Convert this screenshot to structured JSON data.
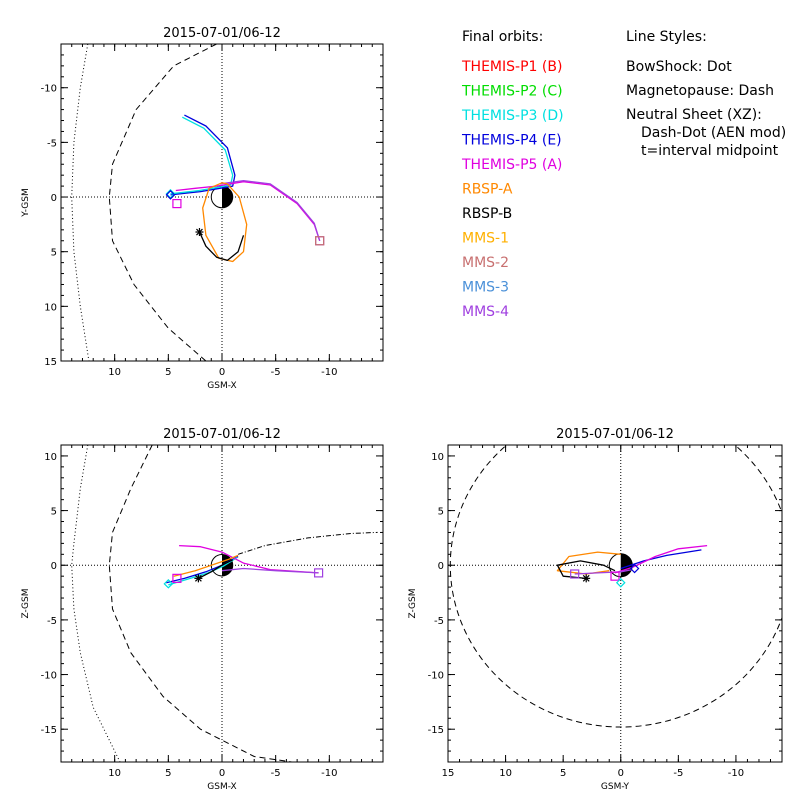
{
  "legend": {
    "orbits_title": "Final orbits:",
    "styles_title": "Line Styles:",
    "entries": [
      {
        "label": "THEMIS-P1 (B)",
        "color": "#ff0000"
      },
      {
        "label": "THEMIS-P2 (C)",
        "color": "#00dd00"
      },
      {
        "label": "THEMIS-P3 (D)",
        "color": "#00e0e0"
      },
      {
        "label": "THEMIS-P4 (E)",
        "color": "#0000dd"
      },
      {
        "label": "THEMIS-P5 (A)",
        "color": "#e000e0"
      },
      {
        "label": "RBSP-A",
        "color": "#ff8800"
      },
      {
        "label": "RBSP-B",
        "color": "#000000"
      },
      {
        "label": "MMS-1",
        "color": "#ffb000"
      },
      {
        "label": "MMS-2",
        "color": "#c87070"
      },
      {
        "label": "MMS-3",
        "color": "#4a90d8"
      },
      {
        "label": "MMS-4",
        "color": "#a040e0"
      }
    ],
    "styles": [
      "BowShock: Dot",
      "Magnetopause: Dash",
      "Neutral Sheet (XZ):",
      "Dash-Dot (AEN mod)",
      "t=interval midpoint"
    ]
  },
  "chart_data": [
    {
      "id": "xy",
      "type": "line",
      "title": "2015-07-01/06-12",
      "xlabel": "GSM-X",
      "ylabel": "Y-GSM",
      "xlim": [
        15,
        -15
      ],
      "ylim": [
        15,
        -14
      ],
      "xticks": [
        10,
        5,
        0,
        -5,
        -10
      ],
      "yticks": [
        -10,
        -5,
        0,
        5,
        10,
        15
      ],
      "bow_shock": [
        [
          12.5,
          -14
        ],
        [
          13.2,
          -10
        ],
        [
          13.8,
          -5
        ],
        [
          14.0,
          0
        ],
        [
          13.8,
          5
        ],
        [
          13.2,
          10
        ],
        [
          12.4,
          15
        ]
      ],
      "magnetopause": [
        [
          0.5,
          -14
        ],
        [
          4.5,
          -12
        ],
        [
          8.0,
          -8
        ],
        [
          10.2,
          -3
        ],
        [
          10.5,
          0
        ],
        [
          10.2,
          4
        ],
        [
          8.2,
          8
        ],
        [
          5.0,
          12
        ],
        [
          1.5,
          15
        ]
      ],
      "series": [
        {
          "name": "THEMIS-P4 (E)",
          "color": "#0000dd",
          "values": [
            [
              3.5,
              -7.5
            ],
            [
              1.5,
              -6.5
            ],
            [
              -0.5,
              -4.5
            ],
            [
              -1.2,
              -2.0
            ],
            [
              -1.0,
              -1.0
            ],
            [
              0.2,
              -0.8
            ],
            [
              2.0,
              -0.5
            ],
            [
              4.8,
              -0.2
            ]
          ]
        },
        {
          "name": "THEMIS-P3 (D)",
          "color": "#00e0e0",
          "values": [
            [
              3.7,
              -7.3
            ],
            [
              1.7,
              -6.3
            ],
            [
              -0.3,
              -4.3
            ],
            [
              -1.0,
              -2.0
            ],
            [
              -0.8,
              -1.1
            ],
            [
              0.3,
              -0.9
            ],
            [
              2.1,
              -0.6
            ],
            [
              4.8,
              -0.3
            ]
          ]
        },
        {
          "name": "THEMIS-P5 (A)",
          "color": "#e000e0",
          "values": [
            [
              4.3,
              -0.6
            ],
            [
              2.5,
              -0.8
            ],
            [
              0.5,
              -1.0
            ],
            [
              -2.0,
              -1.4
            ],
            [
              -4.5,
              -1.1
            ],
            [
              -7.0,
              0.6
            ],
            [
              -8.6,
              2.5
            ],
            [
              -9.1,
              4.0
            ]
          ]
        },
        {
          "name": "MMS-4",
          "color": "#a040e0",
          "values": [
            [
              0.2,
              -1.2
            ],
            [
              -2.0,
              -1.5
            ],
            [
              -4.5,
              -1.2
            ],
            [
              -7.0,
              0.5
            ],
            [
              -8.6,
              2.4
            ],
            [
              -9.1,
              4.0
            ]
          ]
        },
        {
          "name": "RBSP-A",
          "color": "#ff8800",
          "values": [
            [
              -0.5,
              -1.2
            ],
            [
              -1.6,
              0.0
            ],
            [
              -2.3,
              2.5
            ],
            [
              -2.0,
              5.0
            ],
            [
              -1.0,
              5.9
            ],
            [
              0.3,
              5.6
            ],
            [
              1.5,
              3.5
            ],
            [
              1.8,
              1.0
            ],
            [
              1.2,
              -0.8
            ],
            [
              0.0,
              -1.3
            ],
            [
              -0.5,
              -1.2
            ]
          ]
        },
        {
          "name": "RBSP-B",
          "color": "#000000",
          "values": [
            [
              2.1,
              3.2
            ],
            [
              1.5,
              4.5
            ],
            [
              0.5,
              5.5
            ],
            [
              -0.5,
              5.8
            ],
            [
              -1.5,
              5.0
            ],
            [
              -2.0,
              3.5
            ]
          ]
        }
      ],
      "markers": [
        {
          "name": "THEMIS-P3 (D)",
          "shape": "diamond",
          "color": "#00e0e0",
          "x": 4.8,
          "y": -0.3
        },
        {
          "name": "THEMIS-P4 (E)",
          "shape": "diamond",
          "color": "#0000dd",
          "x": 4.8,
          "y": -0.2
        },
        {
          "name": "THEMIS-P5 (A)",
          "shape": "square",
          "color": "#e000e0",
          "x": 4.2,
          "y": 0.6
        },
        {
          "name": "RBSP-B",
          "shape": "asterisk",
          "color": "#000000",
          "x": 2.1,
          "y": 3.2
        },
        {
          "name": "MMS-4",
          "shape": "square",
          "color": "#a040e0",
          "x": -9.1,
          "y": 4.0
        },
        {
          "name": "MMS-2",
          "shape": "square",
          "color": "#c87070",
          "x": -9.1,
          "y": 4.0
        }
      ]
    },
    {
      "id": "xz",
      "type": "line",
      "title": "2015-07-01/06-12",
      "xlabel": "GSM-X",
      "ylabel": "Z-GSM",
      "xlim": [
        15,
        -15
      ],
      "ylim": [
        -18,
        11
      ],
      "xticks": [
        10,
        5,
        0,
        -5,
        -10
      ],
      "yticks": [
        10,
        5,
        0,
        -5,
        -10,
        -15
      ],
      "bow_shock": [
        [
          12.5,
          11
        ],
        [
          13.2,
          7
        ],
        [
          13.8,
          2
        ],
        [
          14.0,
          0
        ],
        [
          13.8,
          -4
        ],
        [
          13.2,
          -8
        ],
        [
          12.0,
          -13
        ],
        [
          10.5,
          -16
        ],
        [
          9.5,
          -18
        ]
      ],
      "magnetopause": [
        [
          6.5,
          11
        ],
        [
          8.5,
          7
        ],
        [
          10.2,
          3
        ],
        [
          10.5,
          0
        ],
        [
          10.2,
          -4
        ],
        [
          8.5,
          -8
        ],
        [
          5.5,
          -12
        ],
        [
          2.0,
          -15
        ],
        [
          -3.0,
          -17.5
        ],
        [
          -6.5,
          -18
        ]
      ],
      "neutral_sheet": [
        [
          -1.5,
          1.0
        ],
        [
          -4.0,
          1.8
        ],
        [
          -8.0,
          2.5
        ],
        [
          -12.0,
          2.9
        ],
        [
          -14.5,
          3.0
        ]
      ],
      "series": [
        {
          "name": "THEMIS-P4 (E)",
          "color": "#0000dd",
          "values": [
            [
              5.2,
              -1.6
            ],
            [
              3.5,
              -1.2
            ],
            [
              1.5,
              -0.6
            ],
            [
              0.0,
              0.0
            ],
            [
              -1.5,
              0.8
            ]
          ]
        },
        {
          "name": "THEMIS-P3 (D)",
          "color": "#00e0e0",
          "values": [
            [
              5.0,
              -1.8
            ],
            [
              3.3,
              -1.3
            ],
            [
              1.3,
              -0.7
            ],
            [
              -0.1,
              -0.1
            ],
            [
              -1.4,
              0.7
            ]
          ]
        },
        {
          "name": "THEMIS-P5 (A)",
          "color": "#e000e0",
          "values": [
            [
              4.0,
              1.8
            ],
            [
              2.0,
              1.7
            ],
            [
              0.0,
              1.2
            ],
            [
              -2.0,
              0.2
            ],
            [
              -4.5,
              -0.4
            ],
            [
              -9.0,
              -0.7
            ]
          ]
        },
        {
          "name": "MMS-4",
          "color": "#a040e0",
          "values": [
            [
              0.0,
              -0.5
            ],
            [
              -2.0,
              -0.3
            ],
            [
              -5.0,
              -0.5
            ],
            [
              -9.0,
              -0.7
            ]
          ]
        },
        {
          "name": "RBSP-A",
          "color": "#ff8800",
          "values": [
            [
              4.5,
              -1.0
            ],
            [
              2.5,
              -0.5
            ],
            [
              1.0,
              0.0
            ],
            [
              -0.5,
              0.5
            ],
            [
              -1.5,
              0.9
            ]
          ]
        },
        {
          "name": "RBSP-B",
          "color": "#000000",
          "values": [
            [
              2.2,
              -1.2
            ],
            [
              1.0,
              -0.6
            ],
            [
              0.0,
              0.0
            ],
            [
              -1.0,
              0.5
            ]
          ]
        }
      ],
      "markers": [
        {
          "name": "THEMIS-P3 (D)",
          "shape": "diamond",
          "color": "#00e0e0",
          "x": 5.0,
          "y": -1.7
        },
        {
          "name": "THEMIS-P5 (A)",
          "shape": "square",
          "color": "#e000e0",
          "x": 4.2,
          "y": -1.2
        },
        {
          "name": "RBSP-B",
          "shape": "asterisk",
          "color": "#000000",
          "x": 2.2,
          "y": -1.2
        },
        {
          "name": "MMS-4",
          "shape": "square",
          "color": "#a040e0",
          "x": -9.0,
          "y": -0.7
        }
      ]
    },
    {
      "id": "yz",
      "type": "line",
      "title": "2015-07-01/06-12",
      "xlabel": "GSM-Y",
      "ylabel": "Z-GSM",
      "xlim": [
        15,
        -14
      ],
      "ylim": [
        -18,
        11
      ],
      "xticks": [
        15,
        10,
        5,
        0,
        -5,
        -10
      ],
      "yticks": [
        10,
        5,
        0,
        -5,
        -10,
        -15
      ],
      "magnetopause_circle": {
        "cx": 0,
        "cy": 0,
        "r": 14.8
      },
      "series": [
        {
          "name": "THEMIS-P4 (E)",
          "color": "#0000dd",
          "values": [
            [
              0.0,
              -0.3
            ],
            [
              -2.0,
              0.4
            ],
            [
              -4.0,
              0.9
            ],
            [
              -7.0,
              1.4
            ]
          ]
        },
        {
          "name": "THEMIS-P5 (A)",
          "color": "#e000e0",
          "values": [
            [
              0.5,
              -0.7
            ],
            [
              -1.0,
              -0.2
            ],
            [
              -3.0,
              0.8
            ],
            [
              -5.0,
              1.5
            ],
            [
              -7.5,
              1.8
            ]
          ]
        },
        {
          "name": "RBSP-A",
          "color": "#ff8800",
          "values": [
            [
              1.0,
              -0.5
            ],
            [
              3.0,
              -0.8
            ],
            [
              5.5,
              -0.5
            ],
            [
              4.5,
              0.8
            ],
            [
              2.0,
              1.2
            ],
            [
              0.0,
              1.0
            ]
          ]
        },
        {
          "name": "RBSP-B",
          "color": "#000000",
          "values": [
            [
              3.0,
              -1.2
            ],
            [
              5.0,
              -1.0
            ],
            [
              5.5,
              0.0
            ],
            [
              3.5,
              0.4
            ],
            [
              1.5,
              0.0
            ],
            [
              0.5,
              -0.5
            ]
          ]
        },
        {
          "name": "MMS-4",
          "color": "#a040e0",
          "values": [
            [
              4.0,
              -0.8
            ],
            [
              2.0,
              -0.7
            ],
            [
              0.0,
              -0.6
            ],
            [
              -1.0,
              -0.4
            ]
          ]
        }
      ],
      "markers": [
        {
          "name": "MMS-4",
          "shape": "square",
          "color": "#a040e0",
          "x": 4.0,
          "y": -0.8
        },
        {
          "name": "RBSP-B",
          "shape": "asterisk",
          "color": "#000000",
          "x": 3.0,
          "y": -1.2
        },
        {
          "name": "THEMIS-P5 (A)",
          "shape": "square",
          "color": "#e000e0",
          "x": 0.5,
          "y": -1.0
        },
        {
          "name": "THEMIS-P3 (D)",
          "shape": "diamond",
          "color": "#00e0e0",
          "x": 0.0,
          "y": -1.6
        },
        {
          "name": "THEMIS-P4 (E)",
          "shape": "diamond",
          "color": "#0000dd",
          "x": -1.2,
          "y": -0.3
        }
      ]
    }
  ]
}
